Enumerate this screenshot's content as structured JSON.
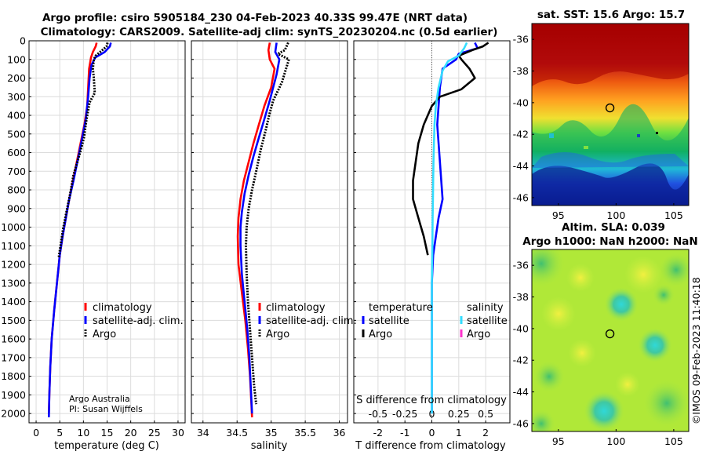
{
  "header": {
    "title_line1": "Argo profile: csiro 5905184_230 04-Feb-2023 40.33S 99.47E (NRT data)",
    "title_line2": "Climatology: CARS2009. Satellite-adj clim: synTS_20230204.nc (0.5d earlier)"
  },
  "credit": {
    "line1": "Argo Australia",
    "line2": "PI: Susan Wijffels"
  },
  "stamp": "©IMOS 09-Feb-2023 11:40:18",
  "colors": {
    "climatology": "#ff0000",
    "satellite": "#0000ff",
    "argo": "#000000",
    "sat_salinity": "#33ddff",
    "argo_salinity": "#ff33cc"
  },
  "chart_data": [
    {
      "id": "temperature",
      "type": "line",
      "xlabel": "temperature (deg C)",
      "ylabel": "",
      "xlim": [
        -1.5,
        31.5
      ],
      "ylim": [
        2050,
        0
      ],
      "xticks": [
        0,
        5,
        10,
        15,
        20,
        25,
        30
      ],
      "yticks": [
        0,
        100,
        200,
        300,
        400,
        500,
        600,
        700,
        800,
        900,
        1000,
        1100,
        1200,
        1300,
        1400,
        1500,
        1600,
        1700,
        1800,
        1900,
        2000
      ],
      "legend": [
        "climatology",
        "satellite-adj. clim.",
        "Argo"
      ],
      "legend_position": "lower-right",
      "series": [
        {
          "name": "climatology",
          "color": "#ff0000",
          "style": "solid",
          "points": [
            [
              12.8,
              10
            ],
            [
              12.6,
              30
            ],
            [
              12.0,
              60
            ],
            [
              11.6,
              90
            ],
            [
              11.2,
              150
            ],
            [
              11.0,
              250
            ],
            [
              10.8,
              350
            ],
            [
              10.2,
              450
            ],
            [
              9.4,
              550
            ],
            [
              8.6,
              650
            ],
            [
              7.8,
              750
            ],
            [
              7.0,
              850
            ],
            [
              6.3,
              950
            ],
            [
              5.6,
              1050
            ],
            [
              5.0,
              1150
            ],
            [
              4.4,
              1300
            ],
            [
              3.8,
              1450
            ],
            [
              3.3,
              1600
            ],
            [
              3.0,
              1750
            ],
            [
              2.8,
              1900
            ],
            [
              2.7,
              2000
            ]
          ]
        },
        {
          "name": "satellite-adj. clim.",
          "color": "#0000ff",
          "style": "solid",
          "points": [
            [
              15.8,
              10
            ],
            [
              15.6,
              30
            ],
            [
              14.5,
              60
            ],
            [
              12.5,
              90
            ],
            [
              11.7,
              130
            ],
            [
              11.3,
              200
            ],
            [
              11.0,
              300
            ],
            [
              10.5,
              420
            ],
            [
              9.6,
              540
            ],
            [
              8.8,
              640
            ],
            [
              7.9,
              750
            ],
            [
              7.0,
              850
            ],
            [
              6.3,
              950
            ],
            [
              5.6,
              1050
            ],
            [
              5.0,
              1150
            ],
            [
              4.4,
              1300
            ],
            [
              3.8,
              1450
            ],
            [
              3.3,
              1600
            ],
            [
              3.0,
              1750
            ],
            [
              2.8,
              1900
            ],
            [
              2.7,
              2020
            ]
          ]
        },
        {
          "name": "Argo",
          "color": "#000000",
          "style": "dots",
          "points": [
            [
              15.1,
              10
            ],
            [
              14.9,
              30
            ],
            [
              14.0,
              50
            ],
            [
              12.6,
              80
            ],
            [
              12.2,
              100
            ],
            [
              12.0,
              150
            ],
            [
              12.2,
              200
            ],
            [
              12.4,
              280
            ],
            [
              11.3,
              330
            ],
            [
              10.6,
              430
            ],
            [
              10.1,
              520
            ],
            [
              9.3,
              600
            ],
            [
              8.6,
              660
            ],
            [
              7.9,
              720
            ],
            [
              7.2,
              820
            ],
            [
              6.4,
              920
            ],
            [
              5.7,
              1010
            ],
            [
              5.1,
              1110
            ],
            [
              4.8,
              1160
            ]
          ]
        }
      ]
    },
    {
      "id": "salinity",
      "type": "line",
      "xlabel": "salinity",
      "ylabel": "",
      "xlim": [
        33.83,
        36.12
      ],
      "ylim": [
        2050,
        0
      ],
      "xticks": [
        34,
        34.5,
        35,
        35.5,
        36
      ],
      "legend": [
        "climatology",
        "satellite-adj. clim.",
        "Argo"
      ],
      "legend_position": "lower-right",
      "series": [
        {
          "name": "climatology",
          "color": "#ff0000",
          "style": "solid",
          "points": [
            [
              34.98,
              10
            ],
            [
              34.96,
              50
            ],
            [
              34.98,
              100
            ],
            [
              35.05,
              150
            ],
            [
              35.0,
              250
            ],
            [
              34.9,
              350
            ],
            [
              34.82,
              450
            ],
            [
              34.74,
              550
            ],
            [
              34.67,
              650
            ],
            [
              34.6,
              750
            ],
            [
              34.55,
              850
            ],
            [
              34.52,
              950
            ],
            [
              34.51,
              1050
            ],
            [
              34.52,
              1200
            ],
            [
              34.57,
              1350
            ],
            [
              34.62,
              1500
            ],
            [
              34.66,
              1650
            ],
            [
              34.69,
              1800
            ],
            [
              34.71,
              1950
            ],
            [
              34.72,
              2020
            ]
          ]
        },
        {
          "name": "satellite-adj. clim.",
          "color": "#0000ff",
          "style": "solid",
          "points": [
            [
              35.08,
              10
            ],
            [
              35.06,
              60
            ],
            [
              35.12,
              100
            ],
            [
              35.08,
              180
            ],
            [
              34.98,
              320
            ],
            [
              34.9,
              420
            ],
            [
              34.82,
              520
            ],
            [
              34.74,
              620
            ],
            [
              34.67,
              720
            ],
            [
              34.61,
              820
            ],
            [
              34.57,
              920
            ],
            [
              34.55,
              1000
            ],
            [
              34.55,
              1100
            ],
            [
              34.57,
              1250
            ],
            [
              34.61,
              1400
            ],
            [
              34.65,
              1550
            ],
            [
              34.68,
              1700
            ],
            [
              34.7,
              1850
            ],
            [
              34.72,
              2000
            ]
          ]
        },
        {
          "name": "Argo",
          "color": "#000000",
          "style": "dots",
          "points": [
            [
              35.25,
              10
            ],
            [
              35.2,
              50
            ],
            [
              35.1,
              70
            ],
            [
              35.26,
              100
            ],
            [
              35.21,
              160
            ],
            [
              35.16,
              220
            ],
            [
              35.11,
              260
            ],
            [
              35.03,
              320
            ],
            [
              34.97,
              400
            ],
            [
              34.92,
              480
            ],
            [
              34.85,
              580
            ],
            [
              34.78,
              700
            ],
            [
              34.72,
              800
            ],
            [
              34.67,
              900
            ],
            [
              34.64,
              1000
            ],
            [
              34.63,
              1100
            ],
            [
              34.64,
              1250
            ],
            [
              34.66,
              1400
            ],
            [
              34.69,
              1550
            ],
            [
              34.72,
              1700
            ],
            [
              34.75,
              1850
            ],
            [
              34.78,
              1950
            ]
          ]
        }
      ]
    },
    {
      "id": "difference",
      "type": "line",
      "xlabel": "T difference from climatology",
      "xlabel_top": "S difference from climatology",
      "xlim": [
        -2.9,
        2.9
      ],
      "ylim": [
        2050,
        0
      ],
      "xticks": [
        -2,
        -1,
        0,
        1,
        2
      ],
      "xticks_s": [
        -0.5,
        -0.25,
        0,
        0.25,
        0.5
      ],
      "xtick_labels_s": [
        "-0.5",
        "-0.25",
        "0",
        "0.25",
        "0.5"
      ],
      "zero_line": "dotted",
      "legend_temperature_title": "temperature",
      "legend_salinity_title": "salinity",
      "legend_temperature_items": [
        "satellite",
        "Argo"
      ],
      "legend_salinity_items": [
        "satellite",
        "Argo"
      ],
      "legend_position": "lower",
      "series": [
        {
          "name": "satellite",
          "group": "temperature",
          "color": "#0000ff",
          "style": "solid",
          "points": [
            [
              1.6,
              10
            ],
            [
              1.7,
              40
            ],
            [
              1.0,
              70
            ],
            [
              0.9,
              100
            ],
            [
              0.4,
              150
            ],
            [
              0.3,
              250
            ],
            [
              0.25,
              350
            ],
            [
              0.2,
              450
            ],
            [
              0.25,
              550
            ],
            [
              0.3,
              650
            ],
            [
              0.35,
              750
            ],
            [
              0.4,
              850
            ],
            [
              0.25,
              950
            ],
            [
              0.15,
              1050
            ],
            [
              0.05,
              1150
            ],
            [
              0.0,
              1300
            ],
            [
              0.0,
              1500
            ],
            [
              0.0,
              1700
            ],
            [
              0.0,
              1900
            ],
            [
              0.0,
              2000
            ]
          ]
        },
        {
          "name": "Argo",
          "group": "temperature",
          "color": "#000000",
          "style": "solid",
          "points": [
            [
              2.1,
              10
            ],
            [
              1.9,
              30
            ],
            [
              1.5,
              50
            ],
            [
              1.0,
              80
            ],
            [
              1.1,
              100
            ],
            [
              1.4,
              150
            ],
            [
              1.6,
              200
            ],
            [
              1.1,
              260
            ],
            [
              0.3,
              300
            ],
            [
              0.0,
              350
            ],
            [
              -0.3,
              450
            ],
            [
              -0.5,
              550
            ],
            [
              -0.6,
              650
            ],
            [
              -0.7,
              750
            ],
            [
              -0.7,
              850
            ],
            [
              -0.5,
              950
            ],
            [
              -0.3,
              1050
            ],
            [
              -0.15,
              1150
            ]
          ]
        },
        {
          "name": "satellite",
          "group": "salinity",
          "color": "#33ddff",
          "style": "solid",
          "points": [
            [
              1.3,
              10
            ],
            [
              1.2,
              40
            ],
            [
              1.0,
              80
            ],
            [
              0.6,
              110
            ],
            [
              0.4,
              160
            ],
            [
              0.25,
              250
            ],
            [
              0.15,
              350
            ],
            [
              0.1,
              450
            ],
            [
              0.08,
              550
            ],
            [
              0.06,
              650
            ],
            [
              0.05,
              750
            ],
            [
              0.04,
              850
            ],
            [
              0.03,
              950
            ],
            [
              0.02,
              1100
            ],
            [
              0.0,
              1300
            ],
            [
              0.0,
              1600
            ],
            [
              0.0,
              1900
            ],
            [
              0.0,
              2000
            ]
          ]
        }
      ]
    },
    {
      "id": "sst_map",
      "type": "heatmap",
      "title": "sat. SST: 15.6 Argo: 15.7",
      "xlim": [
        92.7,
        106.3
      ],
      "ylim": [
        -46.5,
        -35
      ],
      "xticks": [
        95,
        100,
        105
      ],
      "yticks": [
        -36,
        -38,
        -40,
        -42,
        -44,
        -46
      ],
      "marker": [
        99.47,
        -40.33
      ]
    },
    {
      "id": "sla_map",
      "type": "heatmap",
      "title_line1": "Altim. SLA: 0.039",
      "title_line2": "Argo h1000: NaN h2000: NaN",
      "xlim": [
        92.7,
        106.3
      ],
      "ylim": [
        -46.5,
        -35
      ],
      "xticks": [
        95,
        100,
        105
      ],
      "yticks": [
        -36,
        -38,
        -40,
        -42,
        -44,
        -46
      ],
      "marker": [
        99.47,
        -40.33
      ]
    }
  ]
}
